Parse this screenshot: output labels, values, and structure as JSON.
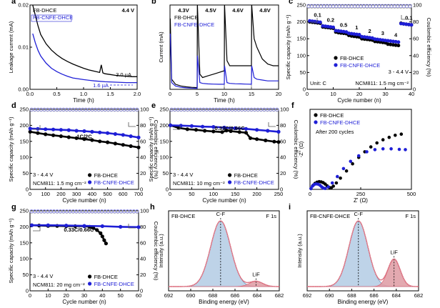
{
  "colors": {
    "black": "#000000",
    "blue": "#1f1fd6",
    "ce_black": "#999999",
    "ce_blue": "#8c8cf0",
    "xps_blue": "#b8cfe6",
    "xps_red": "#e0a0a8",
    "xps_envelope": "#e06070"
  },
  "chart_data": [
    {
      "panel": "a",
      "type": "line",
      "xlabel": "Time (h)",
      "ylabel": "Leakage current (mA)",
      "xlim": [
        0,
        2
      ],
      "ylim": [
        0,
        0.02
      ],
      "xticks": [
        "0.0",
        "0.5",
        "1.0",
        "1.5",
        "2.0"
      ],
      "yticks": [
        "0.00",
        "0.01",
        "0.02"
      ],
      "series": [
        {
          "name": "FB-DHCE",
          "color": "black",
          "x": [
            0.05,
            0.1,
            0.15,
            0.2,
            0.3,
            0.4,
            0.5,
            0.6,
            0.7,
            0.8,
            0.9,
            1.0,
            1.1,
            1.2,
            1.3,
            1.33,
            1.36,
            1.4,
            1.5,
            1.6,
            1.7,
            1.8,
            1.9,
            2.0
          ],
          "y": [
            0.02,
            0.0175,
            0.015,
            0.013,
            0.0108,
            0.0093,
            0.0082,
            0.0073,
            0.0066,
            0.006,
            0.0055,
            0.005,
            0.0046,
            0.0043,
            0.004,
            0.0058,
            0.0039,
            0.0037,
            0.0035,
            0.0033,
            0.0032,
            0.0031,
            0.003,
            0.003
          ]
        },
        {
          "name": "FB-CNFE-DHCE",
          "color": "blue",
          "x": [
            0.05,
            0.1,
            0.15,
            0.2,
            0.3,
            0.4,
            0.5,
            0.6,
            0.7,
            0.8,
            1.0,
            1.2,
            1.4,
            1.6,
            1.8,
            2.0
          ],
          "y": [
            0.0132,
            0.011,
            0.0092,
            0.0079,
            0.0062,
            0.005,
            0.0042,
            0.0036,
            0.0031,
            0.0027,
            0.0023,
            0.002,
            0.0018,
            0.0017,
            0.0016,
            0.0016
          ]
        }
      ],
      "annotations": [
        "4.4 V",
        "3.0 µA",
        "1.6 µA"
      ]
    },
    {
      "panel": "b",
      "type": "line",
      "xlabel": "Time (h)",
      "ylabel": "Current (mA)",
      "xlim": [
        0,
        20
      ],
      "ylim": [
        0,
        0.5
      ],
      "xticks": [
        "0",
        "5",
        "10",
        "15",
        "20"
      ],
      "voltages": [
        "4.3V",
        "4.5V",
        "4.6V",
        "4.8V"
      ],
      "series": [
        {
          "name": "FB-DHCE",
          "color": "black",
          "x": [
            0.05,
            0.3,
            1,
            2,
            3,
            4,
            5,
            5.05,
            5.5,
            6,
            7,
            8,
            9,
            10,
            10.05,
            10.5,
            11,
            12,
            13,
            14,
            15,
            15.05,
            15.5,
            16,
            17,
            18,
            19,
            20
          ],
          "y": [
            0.42,
            0.06,
            0.03,
            0.02,
            0.015,
            0.012,
            0.01,
            0.5,
            0.09,
            0.07,
            0.08,
            0.09,
            0.1,
            0.11,
            0.5,
            0.17,
            0.14,
            0.14,
            0.14,
            0.14,
            0.14,
            0.5,
            0.3,
            0.25,
            0.18,
            0.15,
            0.14,
            0.14
          ]
        },
        {
          "name": "FB-CNFE-DHCE",
          "color": "blue",
          "x": [
            0.05,
            0.3,
            1,
            2,
            3,
            4,
            5,
            5.05,
            5.5,
            6,
            7,
            8,
            9,
            10,
            10.05,
            10.5,
            11,
            12,
            13,
            14,
            15,
            15.05,
            15.5,
            16,
            17,
            18,
            19,
            20
          ],
          "y": [
            0.33,
            0.04,
            0.02,
            0.012,
            0.009,
            0.007,
            0.006,
            0.2,
            0.04,
            0.035,
            0.032,
            0.031,
            0.03,
            0.03,
            0.14,
            0.04,
            0.035,
            0.033,
            0.032,
            0.031,
            0.03,
            0.14,
            0.07,
            0.06,
            0.055,
            0.05,
            0.05,
            0.05
          ]
        }
      ]
    },
    {
      "panel": "c",
      "type": "scatter",
      "xlabel": "Cycle number (n)",
      "ylabel": "Specific capacity (mAh g⁻¹)",
      "y2label": "Coulombic efficiency (%)",
      "xlim": [
        0,
        40
      ],
      "ylim": [
        0,
        250
      ],
      "y2lim": [
        0,
        100
      ],
      "xticks": [
        "0",
        "10",
        "20",
        "30",
        "40"
      ],
      "yticks": [
        "0",
        "50",
        "100",
        "150",
        "200",
        "250"
      ],
      "y2ticks": [
        "0",
        "20",
        "40",
        "60",
        "80",
        "100"
      ],
      "rates": [
        "0.1",
        "0.2",
        "0.5",
        "1",
        "2",
        "3",
        "4",
        "0.1"
      ],
      "series": [
        {
          "name": "FB-DHCE",
          "color": "black",
          "values": [
            200,
            199,
            198,
            197,
            196,
            185,
            184,
            183,
            182,
            181,
            170,
            168,
            167,
            166,
            165,
            160,
            158,
            157,
            156,
            155,
            150,
            149,
            148,
            147,
            146,
            142,
            141,
            140,
            139,
            138,
            134,
            133,
            132,
            131,
            130,
            196,
            194,
            193,
            192,
            191
          ]
        },
        {
          "name": "FB-CNFE-DHCE",
          "color": "blue",
          "values": [
            203,
            202,
            201,
            200,
            199,
            188,
            187,
            186,
            185,
            184,
            174,
            173,
            172,
            171,
            170,
            166,
            165,
            164,
            163,
            162,
            156,
            155,
            154,
            153,
            152,
            149,
            148,
            147,
            146,
            145,
            144,
            143,
            142,
            141,
            140,
            195,
            194,
            193,
            192,
            191
          ]
        }
      ],
      "ce": {
        "FB-DHCE": 98,
        "FB-CNFE-DHCE": 99
      },
      "labels": [
        "Unit: C",
        "NCM811: 1.5 mg cm⁻²",
        "3 - 4.4 V",
        "FB-DHCE",
        "FB-CNFE-DHCE"
      ]
    },
    {
      "panel": "d",
      "type": "scatter",
      "xlabel": "Cycle number (n)",
      "ylabel": "Specific capacity (mAh g⁻¹)",
      "y2label": "Coulombic efficiency (%)",
      "xlim": [
        0,
        700
      ],
      "ylim": [
        0,
        250
      ],
      "y2lim": [
        0,
        100
      ],
      "xticks": [
        "0",
        "100",
        "200",
        "300",
        "400",
        "500",
        "600",
        "700"
      ],
      "yticks": [
        "0",
        "50",
        "100",
        "150",
        "200",
        "250"
      ],
      "y2ticks": [
        "0",
        "20",
        "40",
        "60",
        "80",
        "100"
      ],
      "series": [
        {
          "name": "FB-DHCE",
          "color": "black",
          "x": [
            1,
            50,
            100,
            150,
            200,
            250,
            300,
            350,
            400,
            450,
            500,
            550,
            600,
            650,
            700
          ],
          "y": [
            180,
            176,
            172,
            169,
            166,
            163,
            160,
            157,
            154,
            150,
            147,
            143,
            139,
            135,
            131
          ]
        },
        {
          "name": "FB-CNFE-DHCE",
          "color": "blue",
          "x": [
            1,
            50,
            100,
            150,
            200,
            250,
            300,
            350,
            400,
            450,
            500,
            550,
            600,
            650,
            700
          ],
          "y": [
            190,
            189,
            188,
            187,
            186,
            185,
            183,
            182,
            180,
            178,
            176,
            173,
            170,
            166,
            162
          ]
        }
      ],
      "ce": {
        "FB-DHCE": 99.5,
        "FB-CNFE-DHCE": 99.8
      },
      "labels": [
        "1C/2C",
        "3 - 4.4 V",
        "NCM811: 1.5 mg cm⁻²",
        "FB-DHCE",
        "FB-CNFE-DHCE"
      ]
    },
    {
      "panel": "e",
      "type": "scatter",
      "xlabel": "Cycle number (n)",
      "ylabel": "Specific capacity (mAh g⁻¹)",
      "y2label": "Coulombic efficiency (%)",
      "xlim": [
        0,
        250
      ],
      "ylim": [
        0,
        250
      ],
      "y2lim": [
        0,
        100
      ],
      "xticks": [
        "0",
        "50",
        "100",
        "150",
        "200",
        "250"
      ],
      "yticks": [
        "0",
        "50",
        "100",
        "150",
        "200",
        "250"
      ],
      "y2ticks": [
        "0",
        "20",
        "40",
        "60",
        "80",
        "100"
      ],
      "series": [
        {
          "name": "FB-DHCE",
          "color": "black",
          "x": [
            1,
            20,
            40,
            60,
            80,
            100,
            120,
            130,
            140,
            160,
            175,
            185,
            200,
            220,
            240,
            250
          ],
          "y": [
            200,
            192,
            188,
            186,
            183,
            181,
            179,
            184,
            182,
            179,
            177,
            160,
            157,
            153,
            149,
            148
          ]
        },
        {
          "name": "FB-CNFE-DHCE",
          "color": "blue",
          "x": [
            1,
            25,
            50,
            75,
            100,
            125,
            150,
            175,
            200,
            225,
            250
          ],
          "y": [
            200,
            199,
            198,
            196,
            195,
            193,
            191,
            189,
            186,
            183,
            180
          ]
        }
      ],
      "ce": {
        "FB-DHCE": 99.5,
        "FB-CNFE-DHCE": 99.8
      },
      "labels": [
        "0.33C/0.66C",
        "3 - 4.4 V",
        "NCM811: 10 mg cm⁻²",
        "FB-DHCE",
        "FB-CNFE-DHCE"
      ]
    },
    {
      "panel": "f",
      "type": "scatter",
      "xlabel": "Z' (Ω)",
      "ylabel": "-Z'' (Ω)",
      "xlim": [
        0,
        500
      ],
      "ylim": [
        0,
        500
      ],
      "xticks": [
        "0",
        "250",
        "500"
      ],
      "series": [
        {
          "name": "FB-DHCE",
          "color": "black",
          "x": [
            5,
            15,
            25,
            35,
            45,
            55,
            65,
            75,
            85,
            95,
            105,
            115,
            130,
            150,
            180,
            210,
            240,
            270,
            300,
            330,
            360,
            390,
            420,
            450
          ],
          "y": [
            5,
            25,
            38,
            45,
            48,
            47,
            42,
            33,
            22,
            12,
            10,
            20,
            40,
            70,
            115,
            160,
            200,
            235,
            265,
            290,
            310,
            325,
            338,
            345
          ]
        },
        {
          "name": "FB-CNFE-DHCE",
          "color": "blue",
          "x": [
            5,
            12,
            20,
            30,
            40,
            50,
            58,
            66,
            75,
            90,
            110,
            135,
            165,
            200,
            240,
            280,
            320,
            360,
            400,
            440,
            470
          ],
          "y": [
            5,
            20,
            30,
            34,
            32,
            25,
            15,
            8,
            6,
            15,
            40,
            80,
            130,
            175,
            210,
            235,
            248,
            253,
            253,
            250,
            248
          ]
        }
      ],
      "labels": [
        "After 200 cycles",
        "FB-DHCE",
        "FB-CNFE-DHCE"
      ]
    },
    {
      "panel": "g",
      "type": "scatter",
      "xlabel": "Cycle number (n)",
      "ylabel": "Specific capacity (mAh g⁻¹)",
      "y2label": "Coulombic efficiency (%)",
      "xlim": [
        0,
        60
      ],
      "ylim": [
        0,
        250
      ],
      "y2lim": [
        0,
        100
      ],
      "xticks": [
        "0",
        "10",
        "20",
        "30",
        "40",
        "50",
        "60"
      ],
      "yticks": [
        "0",
        "50",
        "100",
        "150",
        "200",
        "250"
      ],
      "y2ticks": [
        "0",
        "20",
        "40",
        "60",
        "80",
        "100"
      ],
      "series": [
        {
          "name": "FB-DHCE",
          "color": "black",
          "x": [
            1,
            5,
            10,
            15,
            20,
            25,
            30,
            33,
            35,
            37,
            39,
            40,
            41,
            42
          ],
          "y": [
            205,
            204,
            203,
            203,
            202,
            202,
            202,
            200,
            196,
            190,
            180,
            170,
            158,
            148
          ]
        },
        {
          "name": "FB-CNFE-DHCE",
          "color": "blue",
          "x": [
            1,
            10,
            20,
            30,
            40,
            50,
            60
          ],
          "y": [
            205,
            205,
            204,
            203,
            202,
            200,
            199
          ]
        }
      ],
      "ce": {
        "FB-DHCE": 99,
        "FB-CNFE-DHCE": 99.5
      },
      "labels": [
        "0.33C/0.66C",
        "3 - 4.4 V",
        "NCM811: 20 mg cm⁻²",
        "FB-DHCE",
        "FB-CNFE-DHCE"
      ]
    },
    {
      "panel": "h",
      "type": "area",
      "title": "FB-DHCE",
      "tag": "F 1s",
      "xlabel": "Binding energy (eV)",
      "ylabel": "Intensity (a.u.)",
      "xlim": [
        692,
        682
      ],
      "xticks": [
        "692",
        "690",
        "688",
        "686",
        "684",
        "682"
      ],
      "peaks": [
        {
          "label": "C-F",
          "center": 687.3,
          "height": 1.0,
          "width": 0.9
        },
        {
          "label": "LiF",
          "center": 684.1,
          "height": 0.08,
          "width": 0.6
        }
      ]
    },
    {
      "panel": "i",
      "type": "area",
      "title": "FB-CNFE-DHCE",
      "tag": "F 1s",
      "xlabel": "Binding energy (eV)",
      "ylabel": "Intensity (a.u.)",
      "xlim": [
        692,
        682
      ],
      "xticks": [
        "692",
        "690",
        "688",
        "686",
        "684",
        "682"
      ],
      "peaks": [
        {
          "label": "C-F",
          "center": 687.4,
          "height": 1.0,
          "width": 0.85
        },
        {
          "label": "LiF",
          "center": 684.2,
          "height": 0.42,
          "width": 0.55
        }
      ]
    }
  ]
}
